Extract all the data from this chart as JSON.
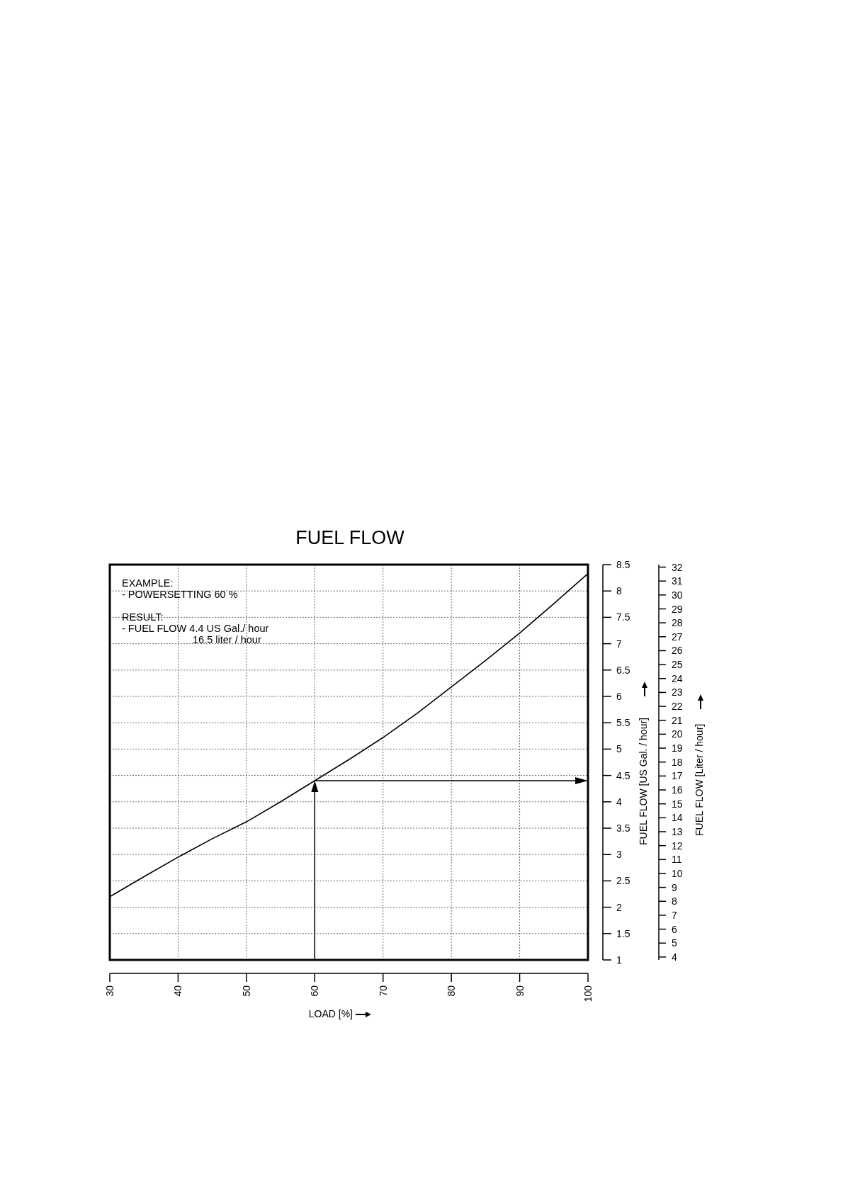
{
  "chart_data": {
    "type": "line",
    "title": "FUEL FLOW",
    "xlabel": "LOAD [%]",
    "ylabel": "FUEL FLOW [US Gal. / hour]",
    "y2label": "FUEL FLOW [Liter / hour]",
    "x": [
      30,
      35,
      40,
      45,
      50,
      55,
      60,
      65,
      70,
      75,
      80,
      85,
      90,
      95,
      100
    ],
    "series": [
      {
        "color": "#000000",
        "values": [
          2.2,
          2.58,
          2.95,
          3.3,
          3.62,
          4.0,
          4.4,
          4.8,
          5.22,
          5.68,
          6.18,
          6.68,
          7.2,
          7.76,
          8.33
        ]
      }
    ],
    "xlim": [
      30,
      100
    ],
    "xticks": [
      30,
      40,
      50,
      60,
      70,
      80,
      90,
      100
    ],
    "ylim": [
      1,
      8.5
    ],
    "yticks": [
      1,
      1.5,
      2,
      2.5,
      3,
      3.5,
      4,
      4.5,
      5,
      5.5,
      6,
      6.5,
      7,
      7.5,
      8,
      8.5
    ],
    "y2lim": [
      3.79,
      32.18
    ],
    "y2ticks": [
      4,
      5,
      6,
      7,
      8,
      9,
      10,
      11,
      12,
      13,
      14,
      15,
      16,
      17,
      18,
      19,
      20,
      21,
      22,
      23,
      24,
      25,
      26,
      27,
      28,
      29,
      30,
      31,
      32
    ],
    "grid": true,
    "marker": "none",
    "line_style": "solid",
    "ref_lines": [
      {
        "axis": "x",
        "value": 60,
        "color": "#000000"
      },
      {
        "axis": "y",
        "value": 4.4,
        "color": "#000000"
      }
    ],
    "annotations": [
      "EXAMPLE:",
      "- POWERSETTING 60 %",
      "RESULT:",
      "- FUEL FLOW  4.4 US Gal./ hour",
      "16.5 liter / hour"
    ]
  }
}
